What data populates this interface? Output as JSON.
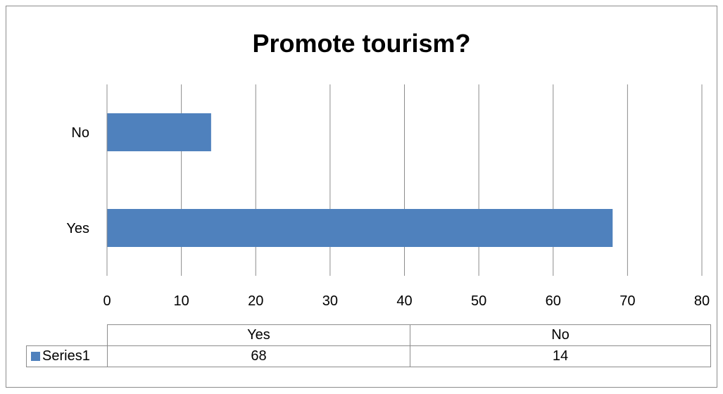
{
  "chart_data": {
    "type": "bar",
    "orientation": "horizontal",
    "title": "Promote tourism?",
    "categories": [
      "Yes",
      "No"
    ],
    "series": [
      {
        "name": "Series1",
        "values": [
          68,
          14
        ],
        "color": "#4f81bd"
      }
    ],
    "xlim": [
      0,
      80
    ],
    "x_ticks": [
      "0",
      "10",
      "20",
      "30",
      "40",
      "50",
      "60",
      "70",
      "80"
    ],
    "grid": "vertical",
    "legend": "data-table-bottom",
    "data_table": {
      "headers": [
        "Yes",
        "No"
      ],
      "rows": [
        {
          "series": "Series1",
          "values": [
            "68",
            "14"
          ]
        }
      ]
    }
  }
}
